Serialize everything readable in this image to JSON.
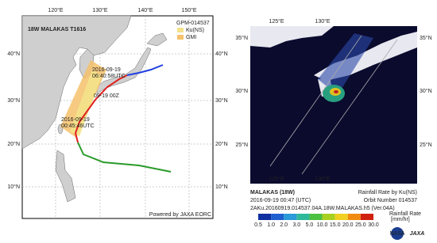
{
  "left_map": {
    "title": "18W  MALAKAS  T1616",
    "lon_labels": [
      "120°E",
      "130°E",
      "140°E",
      "150°E"
    ],
    "lat_labels": [
      "40°N",
      "30°N",
      "20°N",
      "10°N"
    ],
    "legend": {
      "orbit": "GPM-014537",
      "items": [
        "Ku(NS)",
        "GMI"
      ]
    },
    "annotations": {
      "north_date": "2016-09-19",
      "north_time": "06:40:58UTC",
      "mid": "09-19 00Z",
      "south_date": "2016-09-19",
      "south_time": "00:45:46UTC"
    },
    "credit": "Powered by JAXA EORC"
  },
  "right_map": {
    "lon_labels": [
      "125°E",
      "130°E"
    ],
    "lat_labels": [
      "35°N",
      "30°N",
      "25°N"
    ],
    "caption": {
      "name": "MALAKAS (18W)",
      "product": "Rainfall Rate by Ku(NS)",
      "time": "2016-09-19 00:47 (UTC)",
      "orbit": "Orbit Number 014537",
      "file": "2AKu.20160919.014537.04A.18W.MALAKAS.h5  (Ver.04A)"
    },
    "colorbar": {
      "ticks": [
        "0.5",
        "1.0",
        "2.0",
        "3.0",
        "5.0",
        "10.0",
        "15.0",
        "20.0",
        "25.0",
        "30.0"
      ],
      "title": "Rainfall Rate",
      "unit": "[mm/hr]"
    },
    "logos": [
      "NASA",
      "JAXA"
    ]
  }
}
